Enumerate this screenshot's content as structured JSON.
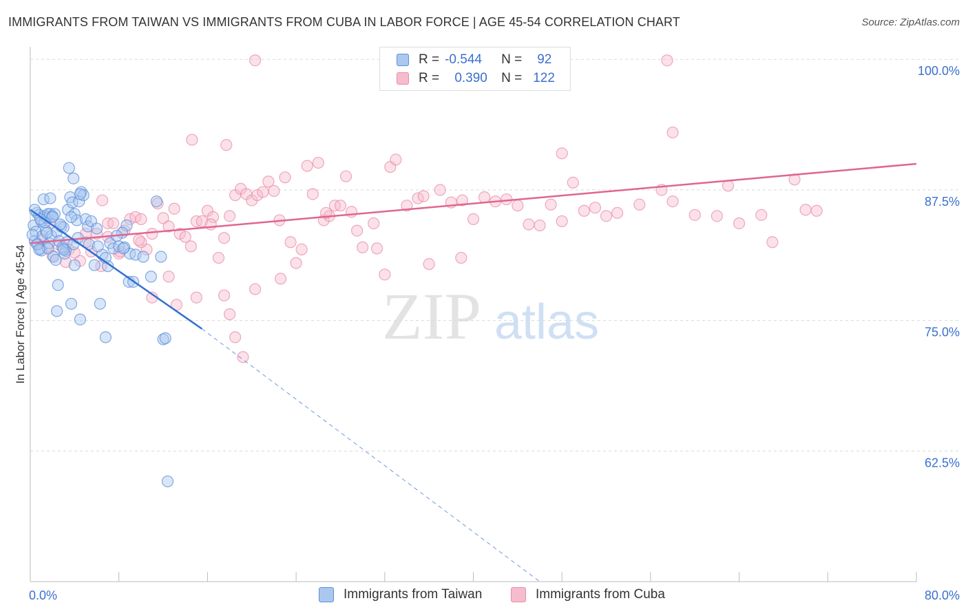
{
  "title": "IMMIGRANTS FROM TAIWAN VS IMMIGRANTS FROM CUBA IN LABOR FORCE | AGE 45-54 CORRELATION CHART",
  "source": "Source: ZipAtlas.com",
  "legend": {
    "rows": [
      {
        "r_label": "R =",
        "r_value": "-0.544",
        "n_label": "N =",
        "n_value": "92"
      },
      {
        "r_label": "R =",
        "r_value": "0.390",
        "n_label": "N =",
        "n_value": "122"
      }
    ]
  },
  "bottom_legend": [
    "Immigrants from Taiwan",
    "Immigrants from Cuba"
  ],
  "watermark": {
    "zip": "ZIP",
    "atlas": "atlas"
  },
  "colors": {
    "taiwan_fill": "#aac7ef",
    "taiwan_stroke": "#5b8fdb",
    "taiwan_line": "#2f6fd0",
    "cuba_fill": "#f6bccd",
    "cuba_stroke": "#e98cab",
    "cuba_line": "#e0658f",
    "tick_label": "#3a6fcf",
    "grid": "#d9d9d9"
  },
  "chart_data": {
    "type": "scatter",
    "title": "IMMIGRANTS FROM TAIWAN VS IMMIGRANTS FROM CUBA IN LABOR FORCE | AGE 45-54 CORRELATION CHART",
    "xlabel": "",
    "ylabel": "In Labor Force | Age 45-54",
    "xlim": [
      0,
      80
    ],
    "ylim": [
      50,
      101.2
    ],
    "x_tick_labels": [
      {
        "value": 0,
        "label": "0.0%"
      },
      {
        "value": 80,
        "label": "80.0%"
      }
    ],
    "x_minor_ticks": [
      8,
      16,
      24,
      32,
      40,
      48,
      56,
      64,
      72,
      80
    ],
    "y_ticks": [
      {
        "value": 100,
        "label": "100.0%"
      },
      {
        "value": 87.5,
        "label": "87.5%"
      },
      {
        "value": 75,
        "label": "75.0%"
      },
      {
        "value": 62.5,
        "label": "62.5%"
      }
    ],
    "series": [
      {
        "name": "Immigrants from Taiwan",
        "R": -0.544,
        "N": 92,
        "trend": {
          "x0": 0,
          "y0": 85.6,
          "x1": 15.5,
          "y1": 74.2,
          "dash_x1": 46.0,
          "dash_y1": 50.0
        },
        "points": [
          [
            0.3,
            84.1
          ],
          [
            0.5,
            83.5
          ],
          [
            0.6,
            85.3
          ],
          [
            0.8,
            85.1
          ],
          [
            1,
            84.5
          ],
          [
            1.2,
            86.6
          ],
          [
            1.3,
            85
          ],
          [
            1.5,
            84.8
          ],
          [
            1.6,
            85.2
          ],
          [
            1.8,
            85.2
          ],
          [
            2,
            85
          ],
          [
            2.2,
            85.2
          ],
          [
            0.4,
            82.6
          ],
          [
            0.7,
            82.3
          ],
          [
            0.9,
            81.9
          ],
          [
            1.1,
            83.1
          ],
          [
            1.4,
            83.6
          ],
          [
            1.7,
            82.4
          ],
          [
            1.9,
            83.1
          ],
          [
            2.1,
            81.1
          ],
          [
            2.4,
            83.5
          ],
          [
            2.6,
            82.6
          ],
          [
            2.8,
            84
          ],
          [
            3,
            83.9
          ],
          [
            3.2,
            81.7
          ],
          [
            3.4,
            85.6
          ],
          [
            3.6,
            86.8
          ],
          [
            3.8,
            86.3
          ],
          [
            4,
            85.2
          ],
          [
            4.2,
            84.6
          ],
          [
            4.4,
            86.4
          ],
          [
            4.6,
            87.3
          ],
          [
            4.8,
            87.0
          ],
          [
            5.0,
            84.7
          ],
          [
            5.2,
            84.0
          ],
          [
            3.5,
            89.6
          ],
          [
            3.9,
            88.6
          ],
          [
            4.5,
            87.1
          ],
          [
            5.5,
            84.5
          ],
          [
            6.0,
            83.8
          ],
          [
            6.5,
            81.3
          ],
          [
            6.8,
            81.0
          ],
          [
            7.0,
            80.2
          ],
          [
            7.2,
            82.4
          ],
          [
            7.5,
            81.9
          ],
          [
            8.0,
            82.1
          ],
          [
            8.5,
            82.0
          ],
          [
            9.0,
            81.4
          ],
          [
            9.5,
            81.3
          ],
          [
            8.7,
            84.1
          ],
          [
            8.3,
            83.4
          ],
          [
            8.9,
            78.7
          ],
          [
            9.3,
            78.7
          ],
          [
            8.4,
            81.9
          ],
          [
            10.2,
            81.1
          ],
          [
            11.8,
            81.1
          ],
          [
            2.5,
            78.4
          ],
          [
            2.4,
            75.9
          ],
          [
            3.7,
            76.6
          ],
          [
            4.5,
            75.1
          ],
          [
            6.3,
            76.6
          ],
          [
            6.8,
            73.4
          ],
          [
            12.0,
            73.2
          ],
          [
            12.2,
            73.3
          ],
          [
            4.0,
            80.3
          ],
          [
            5.8,
            80.3
          ],
          [
            3.1,
            81.4
          ],
          [
            2.3,
            80.8
          ],
          [
            1.0,
            81.7
          ],
          [
            0.6,
            82.3
          ],
          [
            1.5,
            83.4
          ],
          [
            2.9,
            82.0
          ],
          [
            3.3,
            82.5
          ],
          [
            3.7,
            84.9
          ],
          [
            2.0,
            84.9
          ],
          [
            1.3,
            84.4
          ],
          [
            0.9,
            84.7
          ],
          [
            0.2,
            83.2
          ],
          [
            0.4,
            85.6
          ],
          [
            1.8,
            86.7
          ],
          [
            2.7,
            84.2
          ],
          [
            3.9,
            82.3
          ],
          [
            4.3,
            82.9
          ],
          [
            5.3,
            82.3
          ],
          [
            6.1,
            82.1
          ],
          [
            7.8,
            83.1
          ],
          [
            11.4,
            86.4
          ],
          [
            12.4,
            59.6
          ],
          [
            10.9,
            79.2
          ],
          [
            3.0,
            81.8
          ],
          [
            1.6,
            81.9
          ],
          [
            0.8,
            81.8
          ]
        ]
      },
      {
        "name": "Immigrants from Cuba",
        "R": 0.39,
        "N": 122,
        "trend": {
          "x0": 0,
          "y0": 82.4,
          "x1": 80,
          "y1": 90.0
        },
        "points": [
          [
            1.0,
            82.8
          ],
          [
            1.5,
            82.0
          ],
          [
            2.0,
            81.2
          ],
          [
            2.5,
            82.3
          ],
          [
            3.0,
            82.0
          ],
          [
            3.5,
            81.8
          ],
          [
            4.0,
            81.5
          ],
          [
            4.5,
            80.7
          ],
          [
            5.0,
            82.5
          ],
          [
            5.5,
            81.6
          ],
          [
            6.0,
            83.3
          ],
          [
            6.5,
            86.5
          ],
          [
            7.0,
            84.3
          ],
          [
            7.5,
            84.3
          ],
          [
            8.0,
            81.4
          ],
          [
            8.5,
            83.6
          ],
          [
            9.0,
            84.7
          ],
          [
            9.5,
            84.9
          ],
          [
            10.0,
            84.7
          ],
          [
            10.5,
            81.8
          ],
          [
            11.0,
            83.3
          ],
          [
            11.5,
            86.2
          ],
          [
            12.0,
            84.8
          ],
          [
            12.5,
            84.0
          ],
          [
            13.0,
            85.7
          ],
          [
            13.5,
            83.3
          ],
          [
            14.0,
            83.0
          ],
          [
            14.5,
            82.1
          ],
          [
            15.0,
            84.5
          ],
          [
            15.5,
            84.5
          ],
          [
            16.0,
            85.5
          ],
          [
            16.5,
            84.9
          ],
          [
            17.0,
            81.0
          ],
          [
            17.5,
            82.9
          ],
          [
            18.0,
            85.0
          ],
          [
            18.5,
            87.0
          ],
          [
            19.0,
            87.6
          ],
          [
            19.5,
            87.1
          ],
          [
            20.0,
            86.5
          ],
          [
            20.5,
            87.0
          ],
          [
            21.0,
            87.3
          ],
          [
            21.5,
            88.3
          ],
          [
            22.0,
            87.4
          ],
          [
            22.5,
            84.6
          ],
          [
            23.0,
            88.7
          ],
          [
            23.5,
            82.5
          ],
          [
            24.0,
            80.5
          ],
          [
            24.5,
            81.8
          ],
          [
            25.0,
            89.8
          ],
          [
            25.5,
            87.1
          ],
          [
            26.0,
            90.1
          ],
          [
            26.5,
            84.6
          ],
          [
            27.0,
            85.0
          ],
          [
            27.5,
            86.0
          ],
          [
            28.0,
            86.0
          ],
          [
            28.5,
            88.8
          ],
          [
            29.0,
            85.4
          ],
          [
            29.5,
            83.6
          ],
          [
            30.0,
            82.0
          ],
          [
            31.0,
            84.3
          ],
          [
            32.0,
            79.4
          ],
          [
            32.5,
            89.7
          ],
          [
            33.0,
            90.4
          ],
          [
            34.0,
            86.0
          ],
          [
            35.0,
            86.7
          ],
          [
            35.5,
            86.9
          ],
          [
            36.0,
            80.4
          ],
          [
            37.0,
            87.5
          ],
          [
            38.0,
            86.3
          ],
          [
            39.0,
            86.5
          ],
          [
            40.0,
            84.7
          ],
          [
            41.0,
            86.8
          ],
          [
            42.0,
            86.4
          ],
          [
            43.0,
            86.6
          ],
          [
            44.0,
            86.0
          ],
          [
            45.0,
            84.2
          ],
          [
            46.0,
            84.1
          ],
          [
            47.0,
            86.1
          ],
          [
            48.0,
            84.5
          ],
          [
            49.0,
            88.2
          ],
          [
            50.0,
            85.5
          ],
          [
            51.0,
            85.8
          ],
          [
            52.0,
            85.0
          ],
          [
            53.0,
            85.3
          ],
          [
            55.0,
            86.1
          ],
          [
            57.0,
            87.5
          ],
          [
            58.0,
            86.4
          ],
          [
            60.0,
            85.1
          ],
          [
            62.0,
            85.0
          ],
          [
            63.0,
            87.9
          ],
          [
            64.0,
            84.3
          ],
          [
            66.0,
            85.1
          ],
          [
            67.0,
            82.5
          ],
          [
            69.0,
            88.5
          ],
          [
            70.0,
            85.6
          ],
          [
            71.0,
            85.5
          ],
          [
            58.0,
            93.0
          ],
          [
            5.0,
            83.3
          ],
          [
            7.0,
            83.0
          ],
          [
            10.0,
            82.5
          ],
          [
            12.5,
            79.2
          ],
          [
            13.2,
            76.5
          ],
          [
            15.0,
            77.2
          ],
          [
            17.5,
            77.4
          ],
          [
            18.0,
            75.6
          ],
          [
            18.5,
            73.4
          ],
          [
            19.2,
            71.5
          ],
          [
            20.3,
            78.0
          ],
          [
            22.6,
            79.0
          ],
          [
            11.0,
            77.2
          ],
          [
            14.6,
            92.3
          ],
          [
            17.7,
            91.8
          ],
          [
            20.3,
            99.9
          ],
          [
            57.5,
            99.9
          ],
          [
            48.0,
            91.0
          ],
          [
            1.8,
            84.3
          ],
          [
            3.2,
            80.6
          ],
          [
            6.4,
            80.2
          ],
          [
            8.1,
            81.6
          ],
          [
            9.8,
            82.7
          ],
          [
            16.3,
            84.2
          ],
          [
            26.7,
            85.3
          ],
          [
            31.3,
            81.9
          ],
          [
            38.9,
            81.0
          ]
        ]
      }
    ]
  }
}
